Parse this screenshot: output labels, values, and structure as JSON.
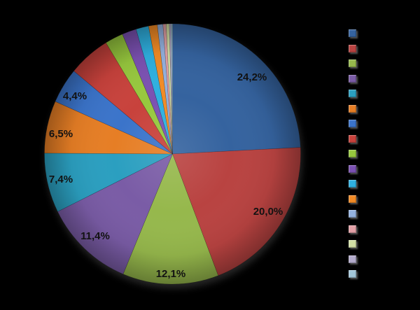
{
  "background_color": "#000000",
  "label_text_color": "#121212",
  "chart_data": {
    "type": "pie",
    "title": "",
    "start_angle_deg": 0,
    "direction": "clockwise",
    "value_unit": "%",
    "decimal_separator": ",",
    "legend": {
      "position": "right",
      "entry_count": 17,
      "labels_visible": false
    },
    "slices": [
      {
        "value": 24.2,
        "label": "24,2%",
        "color": "#35639F",
        "label_pos": [
          360,
          110
        ]
      },
      {
        "value": 20.0,
        "label": "20,0%",
        "color": "#B94341",
        "label_pos": [
          383,
          302
        ]
      },
      {
        "value": 12.1,
        "label": "12,1%",
        "color": "#96B84C",
        "label_pos": [
          244,
          391
        ]
      },
      {
        "value": 11.4,
        "label": "11,4%",
        "color": "#7A5CA6",
        "label_pos": [
          136,
          337
        ]
      },
      {
        "value": 7.4,
        "label": "7,4%",
        "color": "#2B9FC0",
        "label_pos": [
          87,
          256
        ]
      },
      {
        "value": 6.5,
        "label": "6,5%",
        "color": "#E67E25",
        "label_pos": [
          87,
          191
        ]
      },
      {
        "value": 4.4,
        "label": "4,4%",
        "color": "#3B74CA",
        "label_pos": [
          107,
          137
        ]
      },
      {
        "value": 5.3,
        "label": "",
        "color": "#C8423C"
      },
      {
        "value": 2.3,
        "label": "",
        "color": "#97C83E"
      },
      {
        "value": 1.8,
        "label": "",
        "color": "#7B51B2"
      },
      {
        "value": 1.6,
        "label": "",
        "color": "#2FB0E0"
      },
      {
        "value": 1.1,
        "label": "",
        "color": "#F28B26"
      },
      {
        "value": 0.7,
        "label": "",
        "color": "#93B1DE"
      },
      {
        "value": 0.4,
        "label": "",
        "color": "#E2A0A6"
      },
      {
        "value": 0.4,
        "label": "",
        "color": "#D2DFA5"
      },
      {
        "value": 0.2,
        "label": "",
        "color": "#B3ABCB"
      },
      {
        "value": 0.2,
        "label": "",
        "color": "#A3C6D8"
      }
    ]
  }
}
